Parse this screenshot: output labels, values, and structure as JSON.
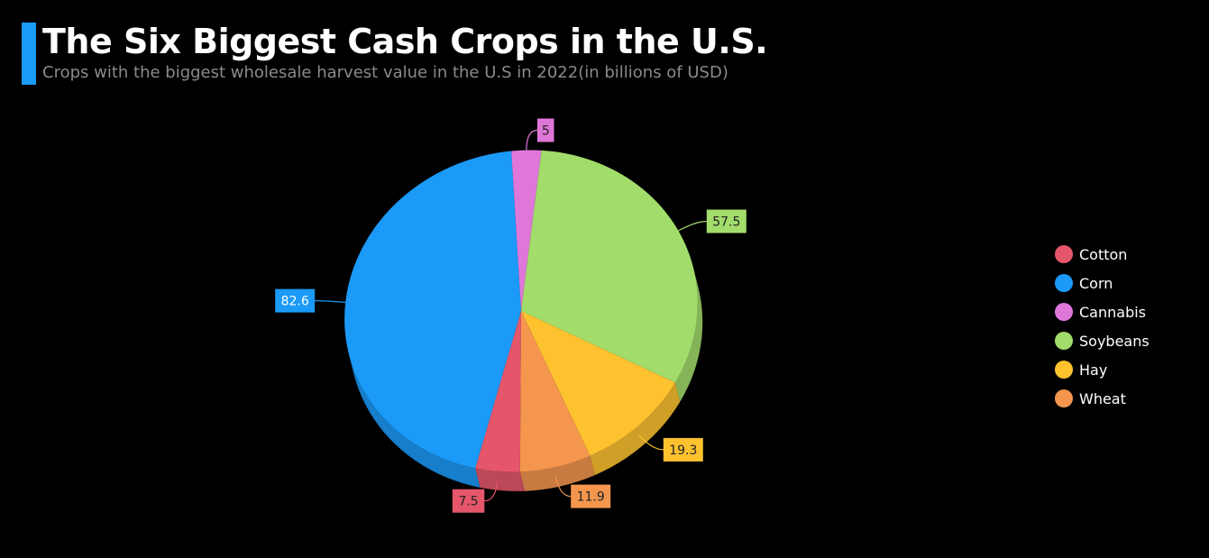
{
  "chart_data": {
    "type": "pie",
    "title": "The Six Biggest Cash Crops in the U.S.",
    "subtitle": "Crops with the biggest wholesale harvest value in the U.S in 2022(in billions of USD)",
    "categories": [
      "Cotton",
      "Corn",
      "Cannabis",
      "Soybeans",
      "Hay",
      "Wheat"
    ],
    "values": [
      7.5,
      82.6,
      5,
      57.5,
      19.3,
      11.9
    ],
    "colors": [
      "#e5566b",
      "#1b9af7",
      "#df77d9",
      "#a2dc6b",
      "#fec22f",
      "#f4964e"
    ],
    "legend_position": "right",
    "data_labels": true,
    "style": "3d-tilted"
  }
}
